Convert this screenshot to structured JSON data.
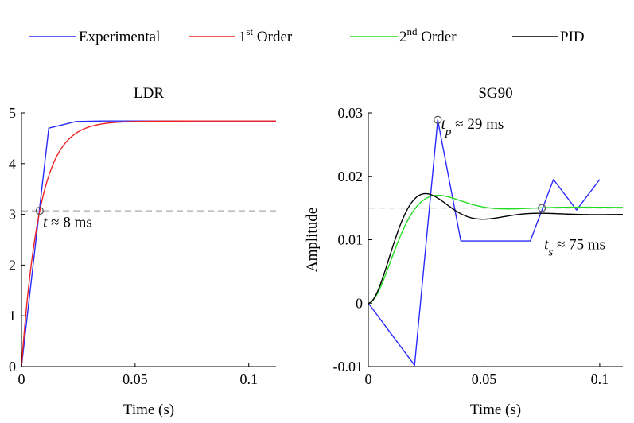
{
  "legend": {
    "position": "top",
    "entries": [
      {
        "label": "Experimental",
        "color": "#2a2aff"
      },
      {
        "label": "1",
        "sup": "st",
        "suffix": " Order",
        "color": "#ee2222"
      },
      {
        "label": "2",
        "sup": "nd",
        "suffix": " Order",
        "color": "#22dd22"
      },
      {
        "label": "PID",
        "color": "#000000"
      }
    ]
  },
  "chart_data": [
    {
      "type": "line",
      "title": "LDR",
      "xlabel": "Time (s)",
      "ylabel": "",
      "xlim": [
        0,
        0.112
      ],
      "ylim": [
        0,
        5
      ],
      "xticks": [
        {
          "v": 0,
          "label": "0"
        },
        {
          "v": 0.05,
          "label": "0.05"
        },
        {
          "v": 0.1,
          "label": "0.1"
        }
      ],
      "yticks": [
        {
          "v": 0,
          "label": "0"
        },
        {
          "v": 1,
          "label": "1"
        },
        {
          "v": 2,
          "label": "2"
        },
        {
          "v": 3,
          "label": "3"
        },
        {
          "v": 4,
          "label": "4"
        },
        {
          "v": 5,
          "label": "5"
        }
      ],
      "reference_line": {
        "y": 3.07,
        "color": "#aaaaaa"
      },
      "series": [
        {
          "name": "Experimental",
          "color": "#2a2aff",
          "x": [
            0,
            0.012,
            0.024,
            0.036,
            0.048,
            0.06,
            0.112
          ],
          "y": [
            0,
            4.7,
            4.83,
            4.84,
            4.84,
            4.84,
            4.84
          ]
        },
        {
          "name": "1st Order",
          "kind": "first_order",
          "color": "#ee2222",
          "final": 4.84,
          "tau": 0.008
        }
      ],
      "markers": [
        {
          "x": 0.008,
          "y": 3.07
        }
      ],
      "annotations": [
        {
          "text": "t ≈ 8 ms",
          "x": 0.0095,
          "y": 2.75
        }
      ]
    },
    {
      "type": "line",
      "title": "SG90",
      "xlabel": "Time (s)",
      "ylabel": "Amplitude",
      "xlim": [
        0,
        0.11
      ],
      "ylim": [
        -0.01,
        0.03
      ],
      "xticks": [
        {
          "v": 0,
          "label": "0"
        },
        {
          "v": 0.05,
          "label": "0.05"
        },
        {
          "v": 0.1,
          "label": "0.1"
        }
      ],
      "yticks": [
        {
          "v": -0.01,
          "label": "-0.01"
        },
        {
          "v": 0,
          "label": "0"
        },
        {
          "v": 0.01,
          "label": "0.01"
        },
        {
          "v": 0.02,
          "label": "0.02"
        },
        {
          "v": 0.03,
          "label": "0.03"
        }
      ],
      "reference_line": {
        "y": 0.015,
        "color": "#aaaaaa"
      },
      "series": [
        {
          "name": "Experimental",
          "color": "#2a2aff",
          "x": [
            0,
            0.02,
            0.03,
            0.04,
            0.05,
            0.06,
            0.07,
            0.08,
            0.09,
            0.1
          ],
          "y": [
            0,
            -0.0098,
            0.0289,
            0.0098,
            0.0098,
            0.0098,
            0.0098,
            0.0195,
            0.0147,
            0.0195
          ]
        },
        {
          "name": "2nd Order",
          "kind": "second_order",
          "color": "#22dd22",
          "final": 0.0151,
          "zeta": 0.55,
          "wn": 125,
          "delay": 0
        },
        {
          "name": "PID",
          "kind": "second_order",
          "color": "#000000",
          "final": 0.014,
          "zeta": 0.42,
          "wn": 140,
          "delay": 0
        }
      ],
      "markers": [
        {
          "x": 0.03,
          "y": 0.0289
        },
        {
          "x": 0.075,
          "y": 0.015
        }
      ],
      "annotations": [
        {
          "text": "t",
          "sub": "p",
          "suffix": " ≈ 29 ms",
          "x": 0.0315,
          "y": 0.0275
        },
        {
          "text": "t",
          "sub": "s",
          "suffix": " ≈ 75 ms",
          "x": 0.076,
          "y": 0.0085
        }
      ]
    }
  ]
}
